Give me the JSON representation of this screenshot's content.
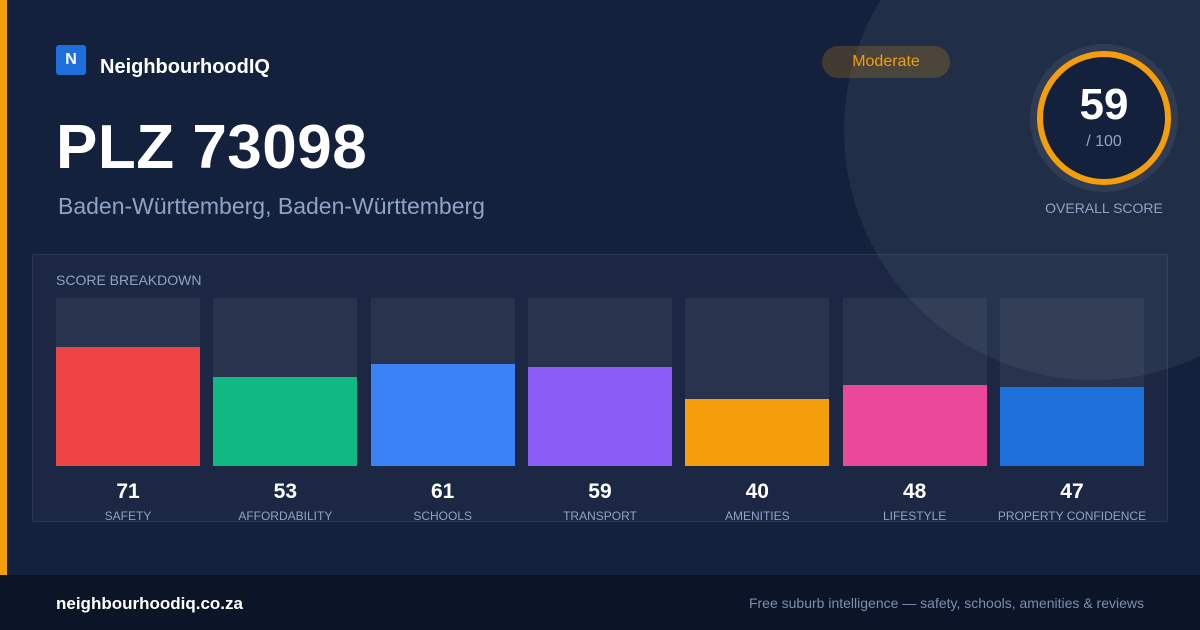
{
  "brand": {
    "logo_letter": "N",
    "name": "NeighbourhoodIQ"
  },
  "badge": {
    "label": "Moderate"
  },
  "location": {
    "title": "PLZ 73098",
    "subtitle": "Baden-Württemberg, Baden-Württemberg"
  },
  "overall": {
    "score": "59",
    "max": "/ 100",
    "label": "OVERALL SCORE",
    "value": 59,
    "color": "#f59e0b"
  },
  "breakdown": {
    "label": "SCORE BREAKDOWN"
  },
  "chart_data": {
    "type": "bar",
    "categories": [
      "SAFETY",
      "AFFORDABILITY",
      "SCHOOLS",
      "TRANSPORT",
      "AMENITIES",
      "LIFESTYLE",
      "PROPERTY CONFIDENCE"
    ],
    "values": [
      71,
      53,
      61,
      59,
      40,
      48,
      47
    ],
    "colors": [
      "#ef4444",
      "#10b981",
      "#3b82f6",
      "#8b5cf6",
      "#f59e0b",
      "#ec4899",
      "#1d6fd9"
    ],
    "ylim": [
      0,
      100
    ]
  },
  "footer": {
    "url": "neighbourhoodiq.co.za",
    "tagline": "Free suburb intelligence — safety, schools, amenities & reviews"
  }
}
